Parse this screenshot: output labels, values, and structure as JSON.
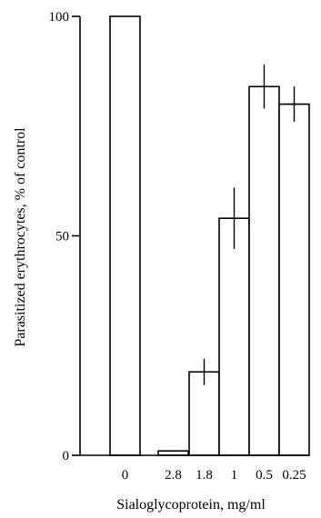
{
  "chart_data": {
    "type": "bar",
    "title": "",
    "xlabel": "Sialoglycoprotein, mg/ml",
    "ylabel": "Parasitized erythrocytes, % of control",
    "categories": [
      "0",
      "2.8",
      "1.8",
      "1",
      "0.5",
      "0.25"
    ],
    "values": [
      100,
      1,
      19,
      54,
      84,
      80
    ],
    "error": [
      0,
      0,
      3,
      7,
      5,
      4
    ],
    "ylim": [
      0,
      100
    ],
    "yticks": [
      0,
      50,
      100
    ],
    "grid": false,
    "legend": "none",
    "colors": {
      "bar_fill": "#ffffff",
      "stroke": "#000000"
    }
  }
}
